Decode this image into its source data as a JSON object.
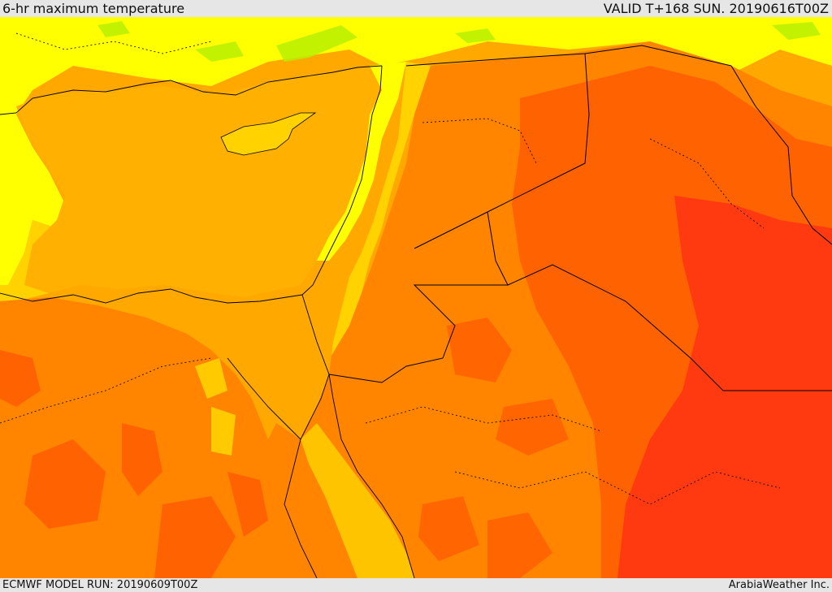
{
  "header": {
    "title": "6-hr maximum temperature",
    "valid_time": "VALID T+168 SUN. 20190616T00Z"
  },
  "footer": {
    "model_run": "ECMWF MODEL RUN: 20190609T00Z",
    "credit": "ArabiaWeather Inc."
  },
  "map": {
    "region": "Eastern Mediterranean / Middle East",
    "field": "6-hr maximum temperature",
    "palette": {
      "cool_green": "#b8f000",
      "yellow": "#ffff00",
      "gold": "#ffd200",
      "orange_light": "#ffa800",
      "orange": "#ff8400",
      "orange_dark": "#ff6200",
      "red": "#ff3a10",
      "sea_shade": "#ffc400"
    },
    "boundary_color": "#000000"
  }
}
